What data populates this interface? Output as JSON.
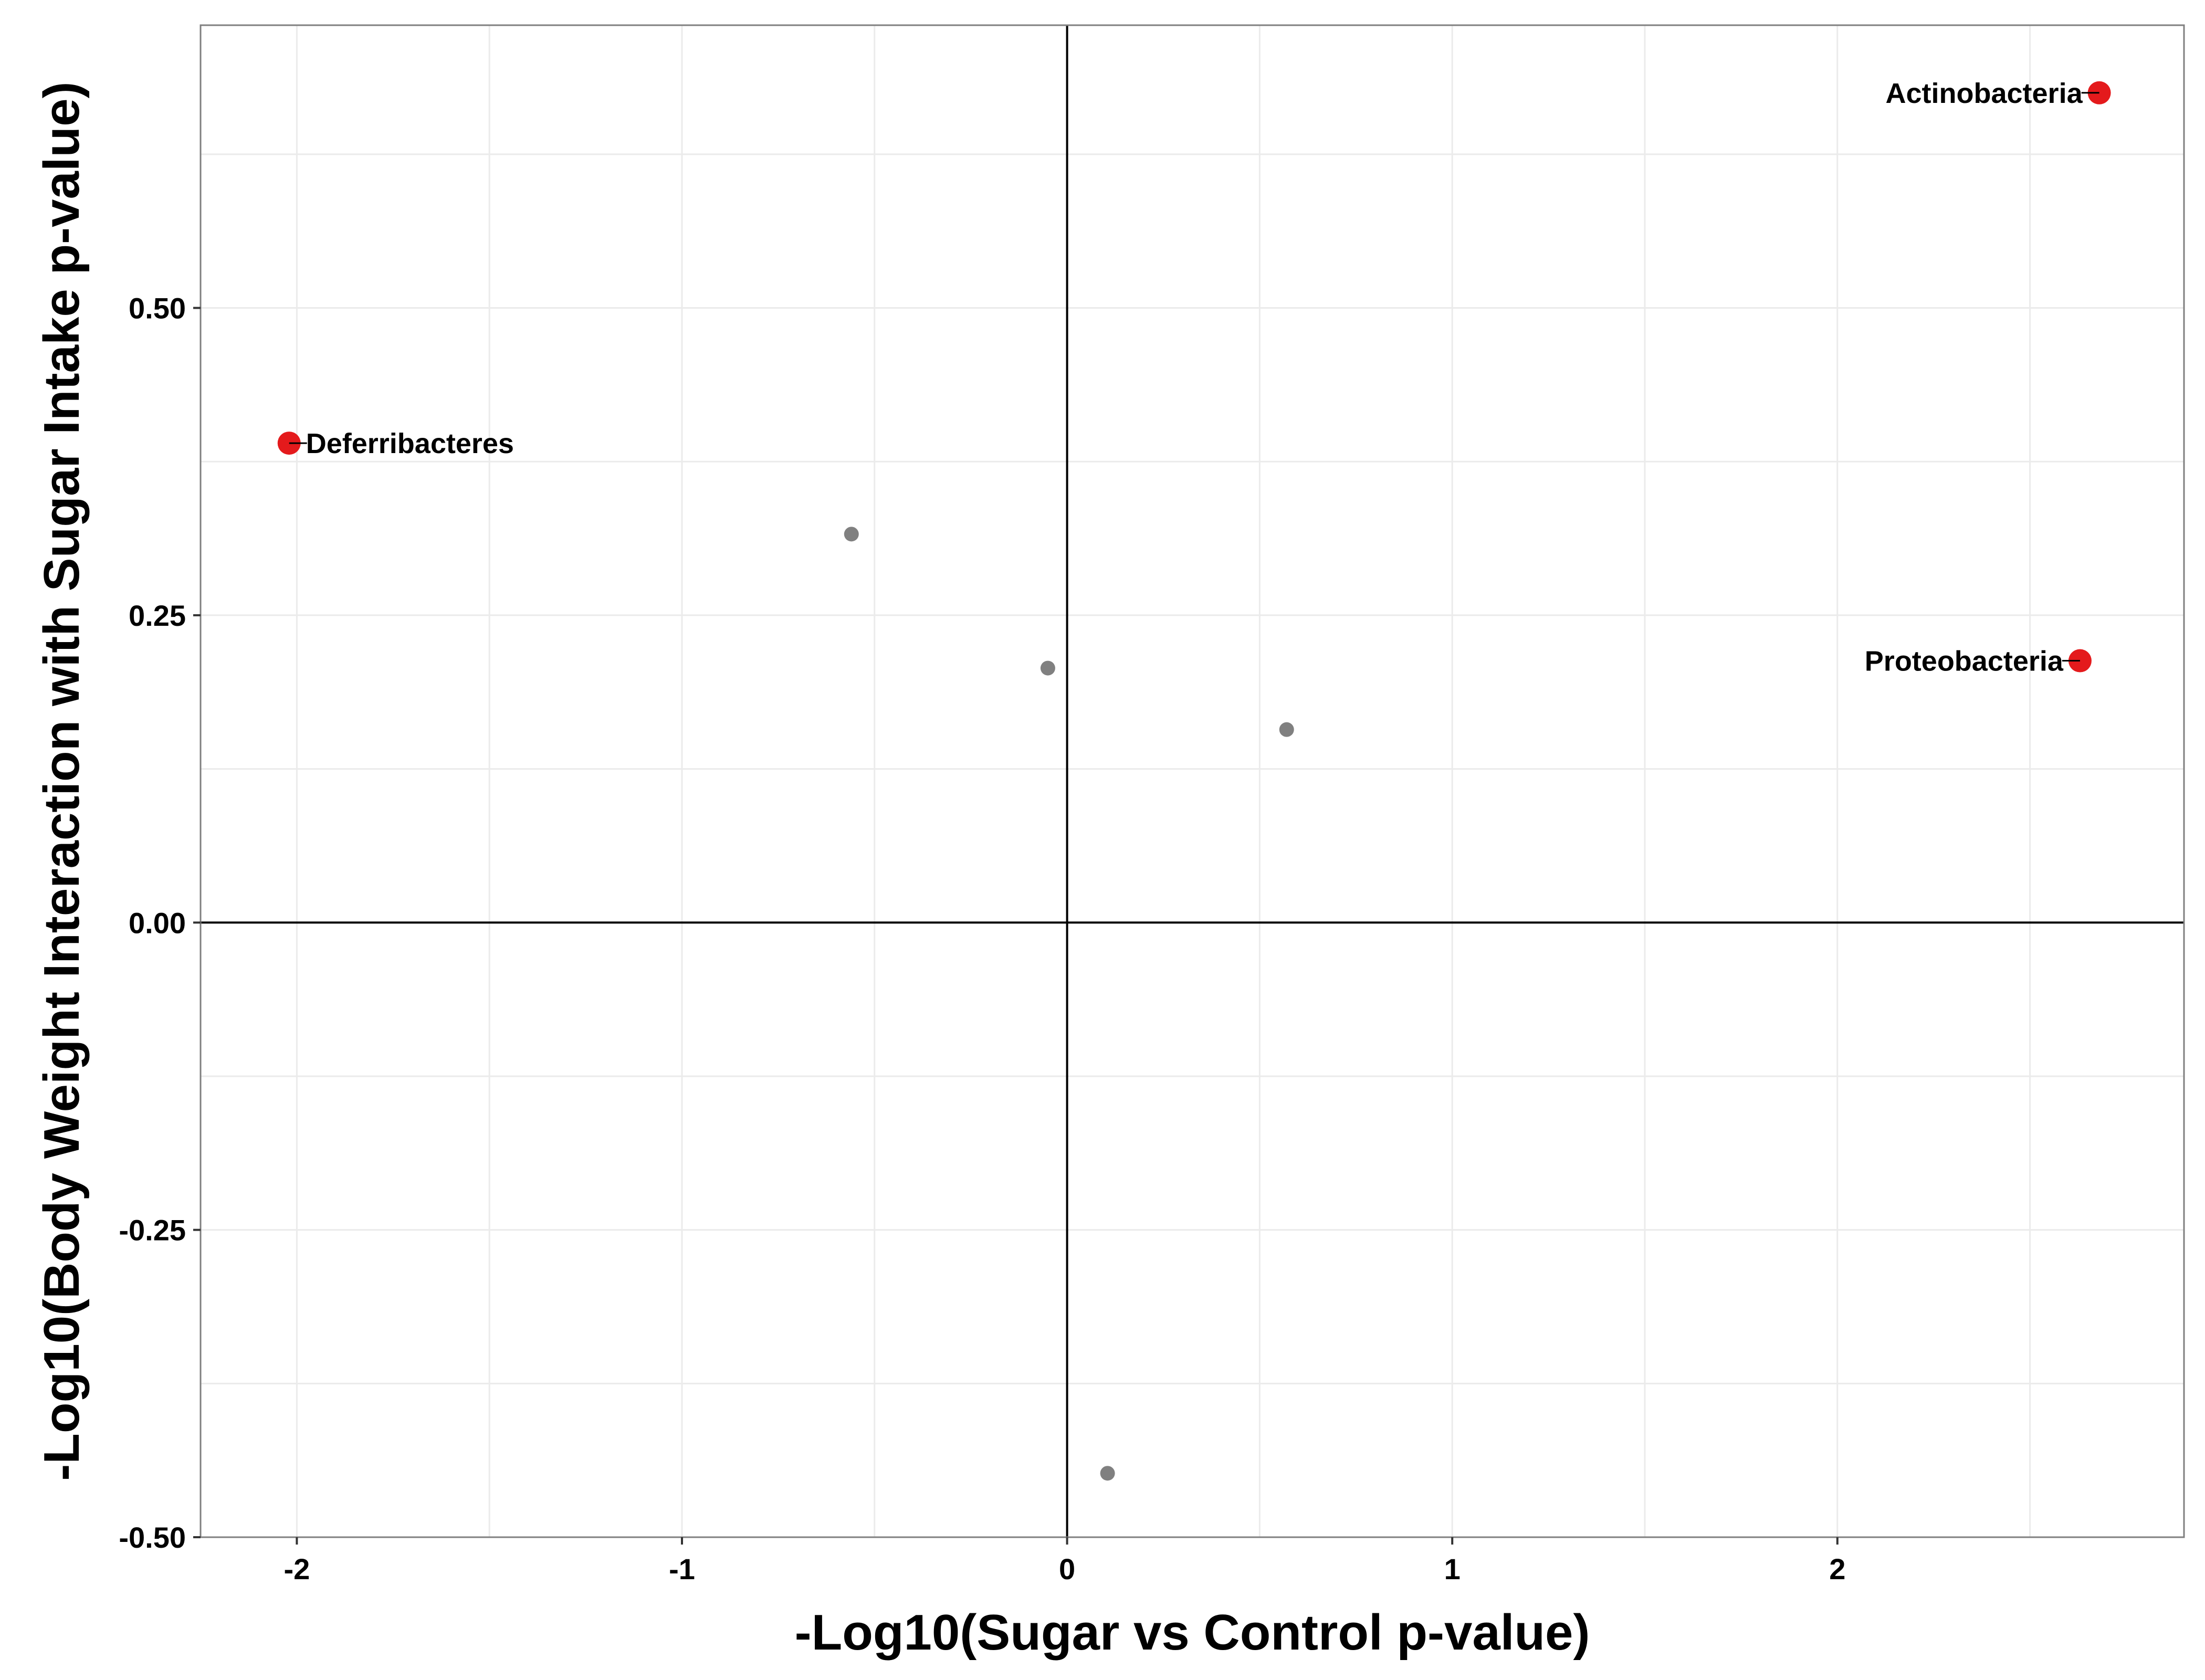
{
  "chart_data": {
    "type": "scatter",
    "title": "",
    "xlabel": "-Log10(Sugar vs Control p-value)",
    "ylabel": "-Log10(Body Weight Interaction with Sugar Intake p-value)",
    "xlim": [
      -2.25,
      2.9
    ],
    "ylim": [
      -0.5,
      0.73
    ],
    "x_ticks": [
      -2,
      -1,
      0,
      1,
      2
    ],
    "x_tick_labels": [
      "-2",
      "-1",
      "0",
      "1",
      "2"
    ],
    "y_ticks": [
      -0.5,
      -0.25,
      0,
      0.25,
      0.5
    ],
    "y_tick_labels": [
      "-0.50",
      "-0.25",
      "0.00",
      "0.25",
      "0.50"
    ],
    "grid": true,
    "reference_lines": {
      "x": 0,
      "y": 0
    },
    "colors": {
      "highlighted": "#e41a1c",
      "other": "#808080",
      "grid": "#ebebeb",
      "panel_border": "#7f7f7f",
      "reference_line": "#000000"
    },
    "points": [
      {
        "x": -2.02,
        "y": 0.39,
        "label": "Deferribacteres",
        "highlighted": true,
        "label_side": "right"
      },
      {
        "x": 2.68,
        "y": 0.675,
        "label": "Actinobacteria",
        "highlighted": true,
        "label_side": "left"
      },
      {
        "x": 2.63,
        "y": 0.213,
        "label": "Proteobacteria",
        "highlighted": true,
        "label_side": "left"
      },
      {
        "x": -0.56,
        "y": 0.316,
        "label": "",
        "highlighted": false
      },
      {
        "x": -0.05,
        "y": 0.207,
        "label": "",
        "highlighted": false
      },
      {
        "x": 0.57,
        "y": 0.157,
        "label": "",
        "highlighted": false
      },
      {
        "x": 0.105,
        "y": -0.448,
        "label": "",
        "highlighted": false
      }
    ]
  }
}
